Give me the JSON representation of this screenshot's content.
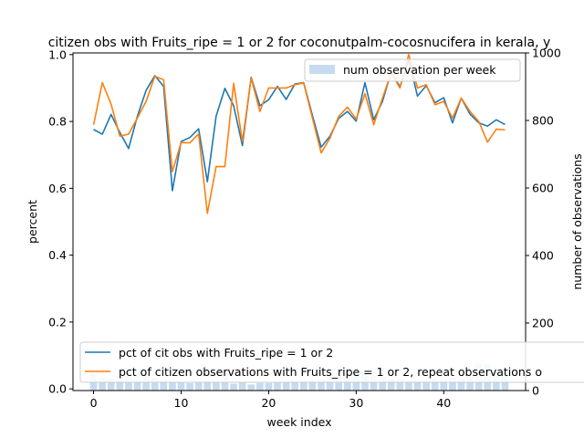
{
  "chart_data": {
    "type": "line",
    "title": "citizen obs with Fruits_ripe = 1 or 2 for coconutpalm-cocosnucifera in kerala, y",
    "xlabel": "week index",
    "ylabel": "percent",
    "ylabel_right": "number of observations",
    "xlim": [
      -2.35,
      49.35
    ],
    "ylim": [
      -0.005,
      1.005
    ],
    "ylim_right": [
      0,
      1000
    ],
    "xticks": [
      0,
      10,
      20,
      30,
      40
    ],
    "yticks": [
      0.0,
      0.2,
      0.4,
      0.6,
      0.8,
      1.0
    ],
    "yticks_right": [
      0,
      200,
      400,
      600,
      800,
      1000
    ],
    "x": [
      0,
      1,
      2,
      3,
      4,
      5,
      6,
      7,
      8,
      9,
      10,
      11,
      12,
      13,
      14,
      15,
      16,
      17,
      18,
      19,
      20,
      21,
      22,
      23,
      24,
      25,
      26,
      27,
      28,
      29,
      30,
      31,
      32,
      33,
      34,
      35,
      36,
      37,
      38,
      39,
      40,
      41,
      42,
      43,
      44,
      45,
      46,
      47
    ],
    "series": [
      {
        "name": "pct of cit obs with Fruits_ripe = 1 or 2",
        "color": "#1f77b4",
        "values": [
          0.776,
          0.762,
          0.821,
          0.767,
          0.719,
          0.815,
          0.893,
          0.937,
          0.905,
          0.593,
          0.74,
          0.752,
          0.778,
          0.62,
          0.816,
          0.899,
          0.847,
          0.728,
          0.932,
          0.847,
          0.865,
          0.905,
          0.866,
          0.912,
          0.916,
          0.818,
          0.723,
          0.756,
          0.809,
          0.83,
          0.801,
          0.916,
          0.805,
          0.86,
          0.948,
          0.904,
          0.985,
          0.876,
          0.907,
          0.856,
          0.871,
          0.796,
          0.87,
          0.822,
          0.796,
          0.786,
          0.805,
          0.791
        ]
      },
      {
        "name": "pct of citizen observations with Fruits_ripe = 1 or 2, repeat observations o",
        "color": "#ff7f0e",
        "values": [
          0.79,
          0.916,
          0.852,
          0.756,
          0.762,
          0.81,
          0.86,
          0.935,
          0.925,
          0.65,
          0.737,
          0.736,
          0.763,
          0.525,
          0.665,
          0.665,
          0.914,
          0.74,
          0.93,
          0.83,
          0.9,
          0.9,
          0.9,
          0.91,
          0.915,
          0.81,
          0.706,
          0.75,
          0.815,
          0.843,
          0.807,
          0.883,
          0.79,
          0.87,
          0.946,
          0.9,
          1.0,
          0.9,
          0.91,
          0.85,
          0.86,
          0.81,
          0.87,
          0.83,
          0.8,
          0.738,
          0.777,
          0.775
        ]
      }
    ],
    "bar_series": {
      "name": "num observation per week",
      "color": "#c6dbef",
      "axis": "right",
      "values": [
        52,
        38,
        35,
        42,
        40,
        58,
        52,
        38,
        32,
        28,
        25,
        22,
        28,
        30,
        32,
        65,
        20,
        25,
        18,
        22,
        22,
        25,
        25,
        28,
        30,
        32,
        35,
        42,
        48,
        55,
        58,
        52,
        45,
        40,
        32,
        35,
        30,
        32,
        28,
        35,
        32,
        38,
        35,
        45,
        80,
        78,
        60,
        58
      ]
    },
    "legend": {
      "upper": "top-right",
      "lower": "bottom-center"
    },
    "grid": false
  }
}
